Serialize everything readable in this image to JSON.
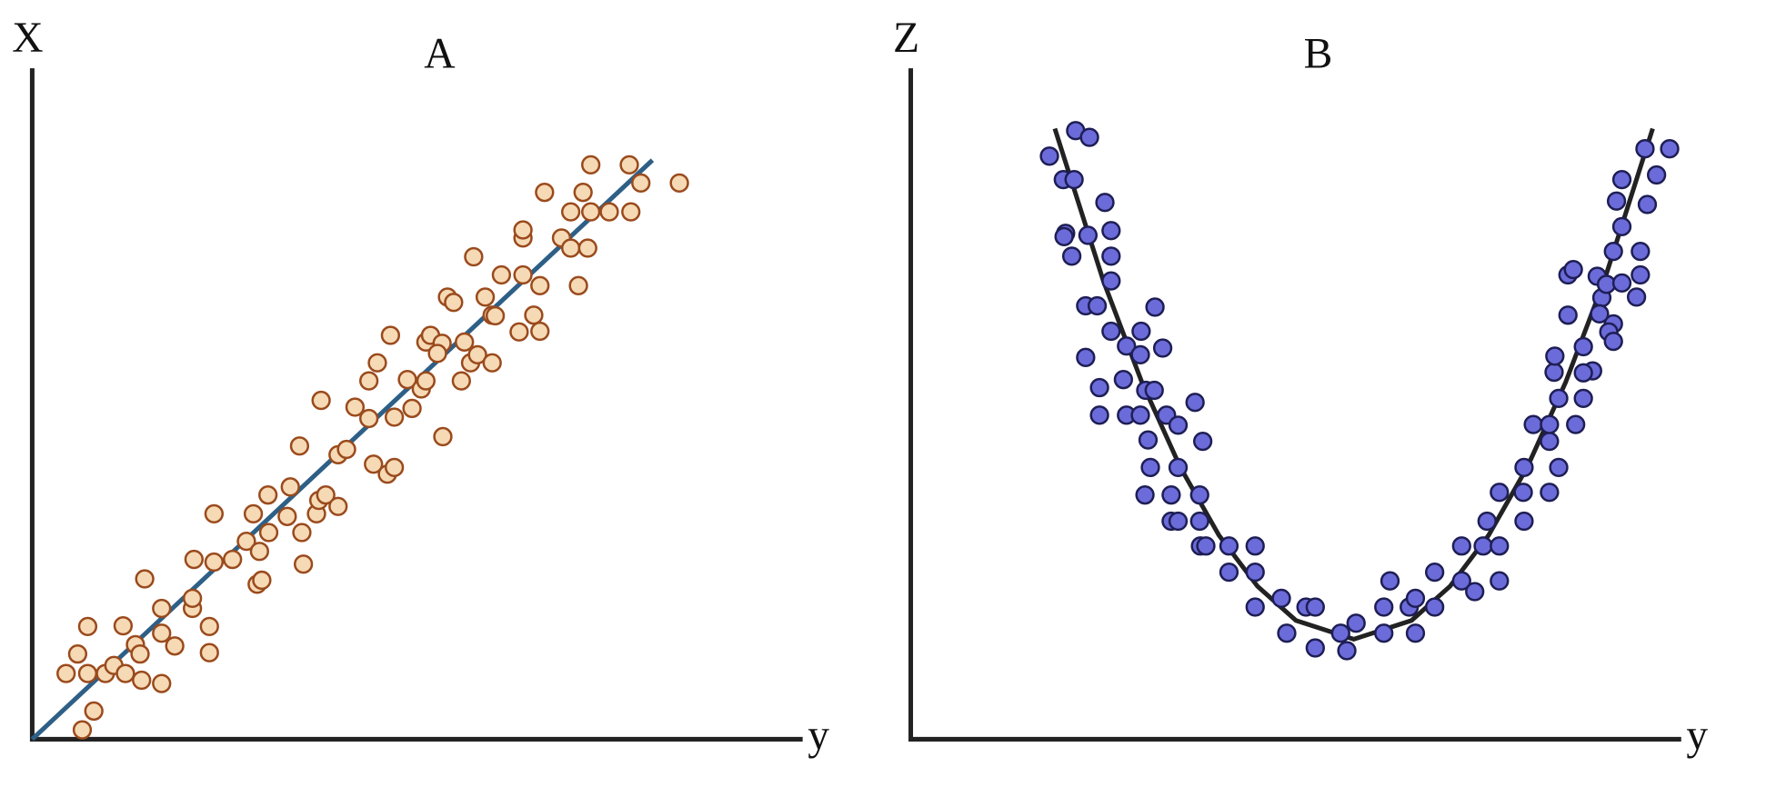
{
  "chart_data": [
    {
      "type": "scatter",
      "title": "A",
      "y_label": "X",
      "x_label": "y",
      "xlim": [
        0,
        100
      ],
      "ylim": [
        0,
        100
      ],
      "series": [
        {
          "color": "#f6d9b5",
          "edge_color": "#9a4a1c",
          "x": [
            6.5,
            8.0,
            4.4,
            5.9,
            7.2,
            7.2,
            9.5,
            10.6,
            12.1,
            14.2,
            16.8,
            11.8,
            13.4,
            14.0,
            16.8,
            18.5,
            14.6,
            16.8,
            20.8,
            20.8,
            23.0,
            23.0,
            21.0,
            23.6,
            26.0,
            23.6,
            27.8,
            29.5,
            29.2,
            29.8,
            30.7,
            28.7,
            30.6,
            33.1,
            33.5,
            35.0,
            35.2,
            36.9,
            37.2,
            38.1,
            39.7,
            34.7,
            39.7,
            40.8,
            37.5,
            41.9,
            43.7,
            44.3,
            46.1,
            47.0,
            47.0,
            49.3,
            43.7,
            44.8,
            46.5,
            48.7,
            50.5,
            51.1,
            53.3,
            51.1,
            51.7,
            53.2,
            52.6,
            55.7,
            56.1,
            56.9,
            57.8,
            59.7,
            53.9,
            54.7,
            58.8,
            59.7,
            60.1,
            57.3,
            60.9,
            63.2,
            65.1,
            65.9,
            63.7,
            65.9,
            63.7,
            63.7,
            68.7,
            69.9,
            72.1,
            70.9,
            69.9,
            66.5,
            71.5,
            72.5,
            74.9,
            77.7,
            79.0,
            77.5,
            72.5,
            84.0
          ],
          "values": [
            1.4,
            4.2,
            9.8,
            12.7,
            9.8,
            16.8,
            9.8,
            11.0,
            9.8,
            8.8,
            8.3,
            16.9,
            14.1,
            12.7,
            15.8,
            13.9,
            23.9,
            19.5,
            19.5,
            21.0,
            16.8,
            12.9,
            26.8,
            26.4,
            26.8,
            33.6,
            29.5,
            28.0,
            23.1,
            23.7,
            30.8,
            33.6,
            36.4,
            33.2,
            37.6,
            30.8,
            26.1,
            33.6,
            35.6,
            36.4,
            34.7,
            43.7,
            42.4,
            43.2,
            50.5,
            49.5,
            47.8,
            41.0,
            39.5,
            40.5,
            48.0,
            49.3,
            53.4,
            56.1,
            60.2,
            53.6,
            52.2,
            53.4,
            45.1,
            59.2,
            60.2,
            59.0,
            57.5,
            53.4,
            59.2,
            56.1,
            57.3,
            56.1,
            65.9,
            65.1,
            65.9,
            63.2,
            63.1,
            71.9,
            69.2,
            60.7,
            63.2,
            60.8,
            69.2,
            67.6,
            74.7,
            75.9,
            74.7,
            73.2,
            73.2,
            67.6,
            78.6,
            81.5,
            81.5,
            78.6,
            78.6,
            78.6,
            82.9,
            85.6,
            85.6,
            82.9
          ]
        }
      ],
      "fit": {
        "color": "#2e5f86",
        "x": [
          0,
          80.5
        ],
        "values": [
          0,
          86.3
        ]
      }
    },
    {
      "type": "scatter",
      "title": "B",
      "y_label": "Z",
      "x_label": "y",
      "xlim": [
        0,
        100
      ],
      "ylim": [
        0,
        100
      ],
      "series": [
        {
          "color": "#6b6bd9",
          "edge_color": "#1e1e55",
          "x": [
            18.0,
            21.4,
            23.2,
            19.8,
            21.2,
            20.1,
            19.9,
            20.9,
            23.0,
            25.2,
            26.0,
            26.0,
            26.0,
            22.7,
            24.2,
            31.7,
            26.0,
            29.9,
            28.0,
            29.8,
            32.7,
            22.7,
            24.5,
            27.6,
            30.5,
            31.6,
            36.9,
            24.5,
            28.0,
            29.8,
            33.2,
            34.7,
            30.8,
            37.9,
            31.1,
            34.7,
            30.4,
            33.8,
            37.5,
            33.8,
            34.7,
            37.5,
            37.6,
            38.3,
            41.3,
            44.7,
            41.3,
            44.7,
            44.7,
            48.1,
            51.3,
            52.5,
            48.8,
            52.5,
            55.8,
            56.6,
            57.8,
            61.4,
            65.5,
            61.4,
            64.7,
            65.5,
            62.2,
            68.0,
            68.0,
            71.5,
            73.2,
            76.4,
            71.5,
            74.3,
            76.4,
            74.8,
            79.6,
            76.4,
            79.5,
            82.9,
            79.6,
            84.1,
            82.9,
            80.8,
            82.9,
            86.3,
            84.1,
            87.3,
            83.5,
            88.5,
            87.3,
            83.6,
            87.3,
            85.3,
            89.7,
            91.2,
            90.6,
            91.2,
            89.4,
            89.1,
            85.3,
            86.0,
            90.3,
            92.3,
            94.7,
            94.2,
            94.7,
            91.2,
            92.3,
            95.6,
            91.6,
            92.3,
            96.8,
            95.3,
            98.5
          ],
          "values": [
            86.9,
            90.7,
            89.7,
            83.4,
            83.4,
            75.4,
            74.9,
            72.0,
            75.1,
            80.0,
            75.8,
            72.0,
            68.3,
            64.6,
            64.6,
            64.4,
            60.8,
            60.8,
            58.6,
            57.3,
            58.3,
            56.9,
            52.4,
            53.6,
            52.0,
            52.0,
            50.2,
            48.3,
            48.3,
            48.3,
            48.3,
            46.8,
            44.6,
            44.4,
            40.5,
            40.5,
            36.4,
            36.4,
            36.4,
            32.5,
            32.5,
            32.5,
            28.8,
            28.8,
            28.8,
            28.8,
            24.9,
            24.9,
            19.7,
            21.0,
            19.7,
            19.7,
            15.8,
            13.6,
            15.8,
            13.2,
            17.3,
            15.8,
            15.8,
            19.7,
            19.7,
            21.0,
            23.6,
            19.7,
            24.9,
            23.6,
            22.0,
            23.6,
            28.8,
            28.8,
            28.8,
            32.5,
            32.5,
            36.8,
            36.8,
            36.8,
            40.5,
            40.5,
            44.4,
            46.9,
            46.9,
            46.9,
            50.8,
            50.8,
            54.7,
            54.9,
            54.6,
            57.1,
            58.5,
            63.2,
            65.8,
            61.9,
            60.7,
            59.3,
            63.4,
            69.0,
            69.2,
            70.0,
            67.8,
            68.0,
            69.2,
            65.9,
            72.7,
            72.7,
            76.4,
            79.7,
            80.2,
            83.4,
            84.1,
            88.0,
            88.0
          ]
        }
      ],
      "fit": {
        "color": "#222222",
        "x": [
          18.7,
          25,
          30,
          35,
          40,
          45,
          50,
          57.5,
          65,
          70,
          75,
          80,
          85,
          90,
          96.3
        ],
        "values": [
          91.0,
          68.3,
          53.2,
          40.5,
          30.4,
          22.8,
          17.7,
          14.9,
          17.7,
          22.8,
          30.4,
          40.5,
          53.2,
          68.3,
          91.0
        ]
      }
    }
  ]
}
